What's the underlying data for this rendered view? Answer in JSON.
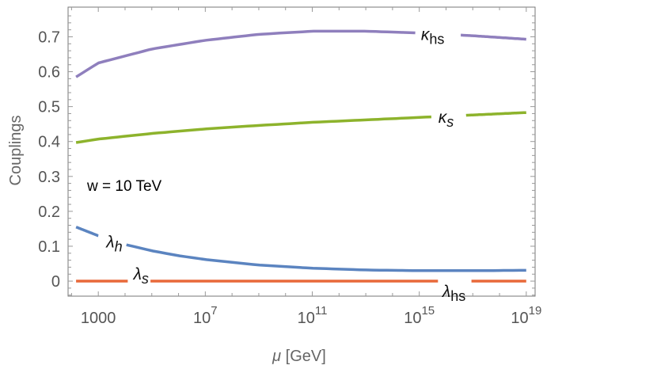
{
  "chart_data": {
    "type": "line",
    "xlabel": "μ [GeV]",
    "ylabel": "Couplings",
    "x_scale": "log",
    "xlim_log10": [
      1.87,
      19.33
    ],
    "ylim": [
      -0.043,
      0.785
    ],
    "x_ticks": [
      {
        "log10": 3,
        "base": "1000",
        "exp": ""
      },
      {
        "log10": 7,
        "base": "10",
        "exp": "7"
      },
      {
        "log10": 11,
        "base": "10",
        "exp": "11"
      },
      {
        "log10": 15,
        "base": "10",
        "exp": "15"
      },
      {
        "log10": 19,
        "base": "10",
        "exp": "19"
      }
    ],
    "y_ticks": [
      "0",
      "0.1",
      "0.2",
      "0.3",
      "0.4",
      "0.5",
      "0.6",
      "0.7"
    ],
    "annotation": "w = 10 TeV",
    "grid": false,
    "series": [
      {
        "name": "κhs",
        "sym": "κ",
        "sub": "hs",
        "color": "#8f7fbd",
        "x_log10": [
          2.17,
          3,
          5,
          7,
          9,
          11,
          13,
          15,
          17,
          19
        ],
        "y": [
          0.585,
          0.625,
          0.665,
          0.69,
          0.707,
          0.716,
          0.716,
          0.711,
          0.703,
          0.693
        ],
        "label_at": 15.5,
        "gap": [
          14.85,
          16.55
        ]
      },
      {
        "name": "κs",
        "sym": "κ",
        "sub": "s",
        "color": "#8db32c",
        "x_log10": [
          2.17,
          3,
          5,
          7,
          9,
          11,
          13,
          15,
          17,
          19
        ],
        "y": [
          0.397,
          0.407,
          0.423,
          0.436,
          0.446,
          0.455,
          0.462,
          0.469,
          0.476,
          0.483
        ],
        "label_at": 16.0,
        "gap": [
          15.45,
          16.75
        ]
      },
      {
        "name": "λh",
        "sym": "λ",
        "sub": "h",
        "color": "#5b84c0",
        "x_log10": [
          2.17,
          3,
          4,
          5,
          6,
          7,
          9,
          11,
          13,
          15,
          17,
          19
        ],
        "y": [
          0.155,
          0.13,
          0.105,
          0.087,
          0.073,
          0.062,
          0.046,
          0.037,
          0.032,
          0.03,
          0.03,
          0.031
        ],
        "label_at": 3.6,
        "gap": [
          3.0,
          4.05
        ]
      },
      {
        "name": "λhs",
        "sym": "λ",
        "sub": "hs",
        "color": "#e8693a",
        "x_log10": [
          2.17,
          19
        ],
        "y": [
          0,
          0
        ],
        "label_at": 16.3,
        "gap": [
          15.7,
          16.95
        ]
      },
      {
        "name": "λs",
        "sym": "λ",
        "sub": "s",
        "color": "#e8693a",
        "x_log10": [
          2.17,
          19
        ],
        "y": [
          0,
          0
        ],
        "label_at": 4.6,
        "gap": [
          4.1,
          4.95
        ]
      }
    ]
  }
}
